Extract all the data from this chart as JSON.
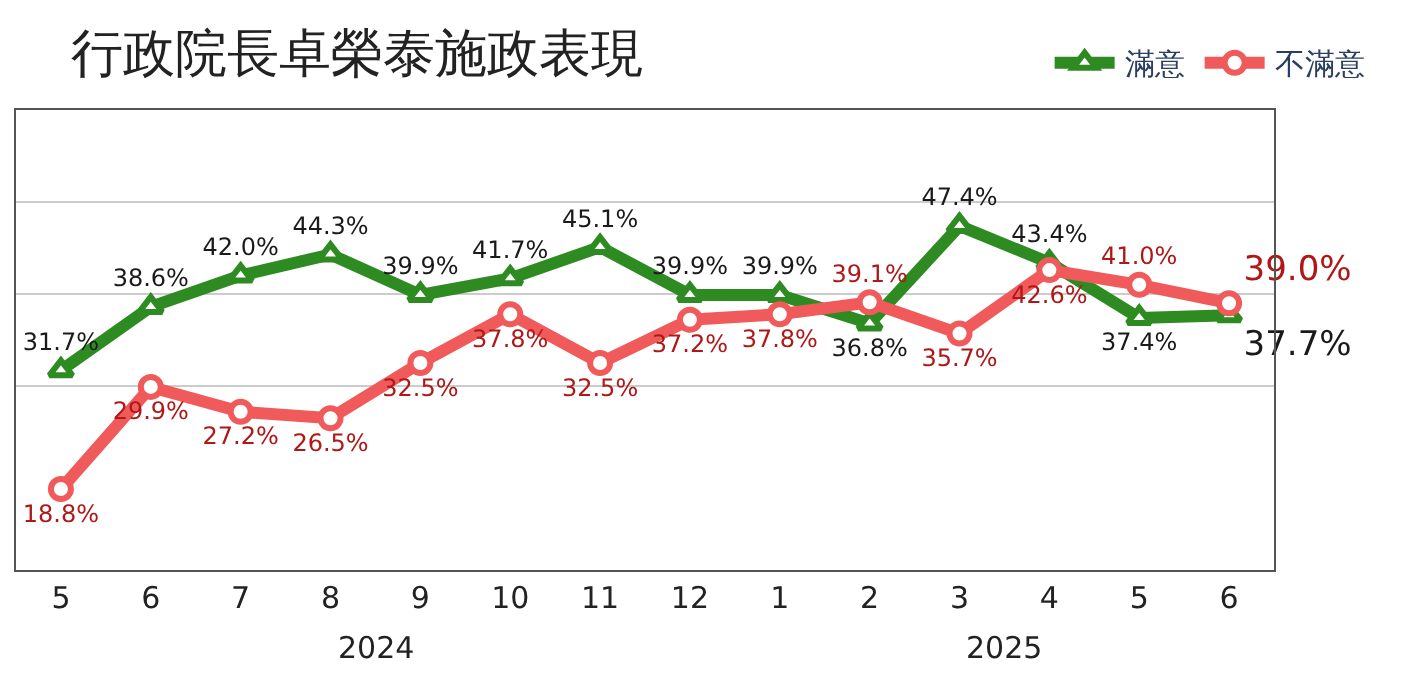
{
  "chart_data": {
    "type": "line",
    "title": "行政院長卓榮泰施政表現",
    "categories": [
      "5",
      "6",
      "7",
      "8",
      "9",
      "10",
      "11",
      "12",
      "1",
      "2",
      "3",
      "4",
      "5",
      "6"
    ],
    "annotations": [
      "2024",
      "2025"
    ],
    "series": [
      {
        "name": "滿意",
        "color": "#2e8b22",
        "marker": "triangle",
        "values": [
          31.7,
          38.6,
          42.0,
          44.3,
          39.9,
          41.7,
          45.1,
          39.9,
          39.9,
          36.8,
          47.4,
          43.4,
          37.4,
          37.7
        ],
        "value_labels": [
          "31.7%",
          "38.6%",
          "42.0%",
          "44.3%",
          "39.9%",
          "41.7%",
          "45.1%",
          "39.9%",
          "39.9%",
          "36.8%",
          "47.4%",
          "43.4%",
          "37.4%",
          "37.7%"
        ]
      },
      {
        "name": "不滿意",
        "color": "#f05a5a",
        "marker": "circle",
        "values": [
          18.8,
          29.9,
          27.2,
          26.5,
          32.5,
          37.8,
          32.5,
          37.2,
          37.8,
          39.1,
          35.7,
          42.6,
          41.0,
          39.0
        ],
        "value_labels": [
          "18.8%",
          "29.9%",
          "27.2%",
          "26.5%",
          "32.5%",
          "37.8%",
          "32.5%",
          "37.2%",
          "37.8%",
          "39.1%",
          "35.7%",
          "42.6%",
          "41.0%",
          "39.0%"
        ]
      }
    ],
    "ylim": [
      10,
      60
    ],
    "yticks": [
      {
        "value": 30,
        "label": null
      },
      {
        "value": 40,
        "label": null
      },
      {
        "value": 50,
        "label": null
      }
    ],
    "tick_labels": "x",
    "grid": "y",
    "legend": "top right",
    "line_style": "solid"
  }
}
